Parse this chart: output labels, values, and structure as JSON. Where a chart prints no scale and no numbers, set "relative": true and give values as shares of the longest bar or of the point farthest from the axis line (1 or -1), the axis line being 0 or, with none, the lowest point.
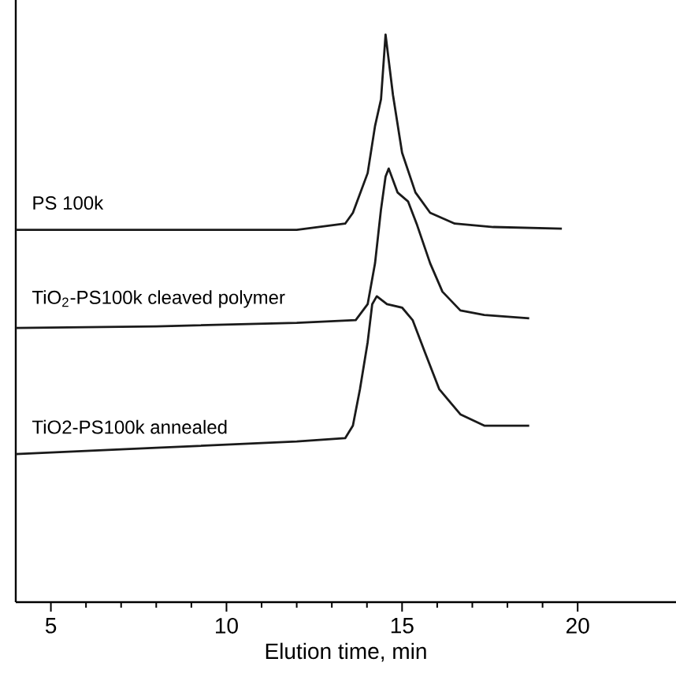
{
  "chart_data": {
    "type": "line",
    "relative": true,
    "xlabel": "Elution time, min",
    "xlim": [
      4,
      22.8
    ],
    "xticks": [
      5,
      10,
      15,
      20
    ],
    "grid": false,
    "marker": "none",
    "line_style": "solid",
    "series": [
      {
        "name": "PS 100k",
        "color": "#1a1a1a",
        "x": [
          4,
          8,
          12,
          13.38,
          13.6,
          14.02,
          14.23,
          14.4,
          14.53,
          14.74,
          15.0,
          15.38,
          15.8,
          16.5,
          17.6,
          19.55
        ],
        "values": [
          0.656,
          0.656,
          0.656,
          0.667,
          0.686,
          0.756,
          0.839,
          0.886,
          1.0,
          0.894,
          0.792,
          0.722,
          0.686,
          0.667,
          0.661,
          0.658
        ]
      },
      {
        "name": "TiO$_{2}$-PS100k cleaved polymer",
        "color": "#1a1a1a",
        "x": [
          4,
          8,
          12,
          13.68,
          14.02,
          14.23,
          14.4,
          14.53,
          14.62,
          14.87,
          15.17,
          15.43,
          15.8,
          16.15,
          16.66,
          17.34,
          18.62
        ],
        "values": [
          0.483,
          0.486,
          0.492,
          0.497,
          0.525,
          0.597,
          0.692,
          0.75,
          0.764,
          0.722,
          0.706,
          0.664,
          0.597,
          0.547,
          0.514,
          0.506,
          0.5
        ]
      },
      {
        "name": "TiO2-PS100k annealed",
        "color": "#1a1a1a",
        "x": [
          4,
          8,
          12,
          13.38,
          13.6,
          13.8,
          14.02,
          14.15,
          14.28,
          14.57,
          15.0,
          15.3,
          15.64,
          16.06,
          16.66,
          17.34,
          18.62
        ],
        "values": [
          0.261,
          0.272,
          0.283,
          0.289,
          0.311,
          0.375,
          0.458,
          0.525,
          0.539,
          0.525,
          0.519,
          0.497,
          0.442,
          0.375,
          0.331,
          0.311,
          0.311
        ]
      }
    ]
  }
}
